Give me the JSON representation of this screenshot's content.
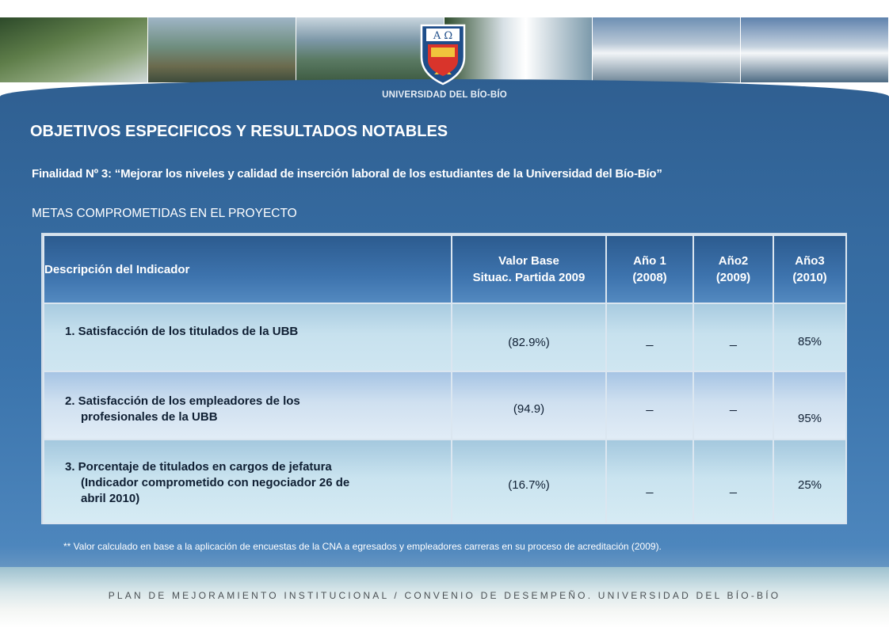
{
  "header": {
    "university_name": "UNIVERSIDAD DEL BÍO-BÍO",
    "crest_letters": "A Ω"
  },
  "title": "OBJETIVOS ESPECIFICOS Y RESULTADOS NOTABLES",
  "subtitle": "Finalidad Nº 3: “Mejorar los niveles y calidad de inserción laboral de los estudiantes de la Universidad del Bío-Bío”",
  "section_heading": "METAS COMPROMETIDAS EN EL PROYECTO",
  "table": {
    "headers": {
      "description": "Descripción del Indicador",
      "base_line1": "Valor Base",
      "base_line2": "Situac. Partida 2009",
      "year1_line1": "Año 1",
      "year1_line2": "(2008)",
      "year2_line1": "Año2",
      "year2_line2": "(2009)",
      "year3_line1": "Año3",
      "year3_line2": "(2010)"
    },
    "rows": [
      {
        "indicator_line1": "1. Satisfacción de los titulados de la UBB",
        "indicator_line2": "",
        "indicator_line3": "",
        "base": "(82.9%)",
        "year1": "_",
        "year2": "_",
        "year3": "85%"
      },
      {
        "indicator_line1": "2. Satisfacción de los empleadores de los",
        "indicator_line2": "profesionales de la UBB",
        "indicator_line3": "",
        "base": "(94.9)",
        "year1": "_",
        "year2": "_",
        "year3": "95%"
      },
      {
        "indicator_line1": "3. Porcentaje de titulados en cargos de jefatura",
        "indicator_line2": "(Indicador comprometido con negociador 26 de",
        "indicator_line3": "abril 2010)",
        "base": "(16.7%)",
        "year1": "_",
        "year2": "_",
        "year3": "25%"
      }
    ]
  },
  "footnote": "** Valor calculado en base a la aplicación de encuestas de la CNA a egresados y empleadores carreras en su proceso de acreditación (2009).",
  "footer": "PLAN DE MEJORAMIENTO INSTITUCIONAL / CONVENIO DE DESEMPEÑO. UNIVERSIDAD DEL BÍO-BÍO"
}
